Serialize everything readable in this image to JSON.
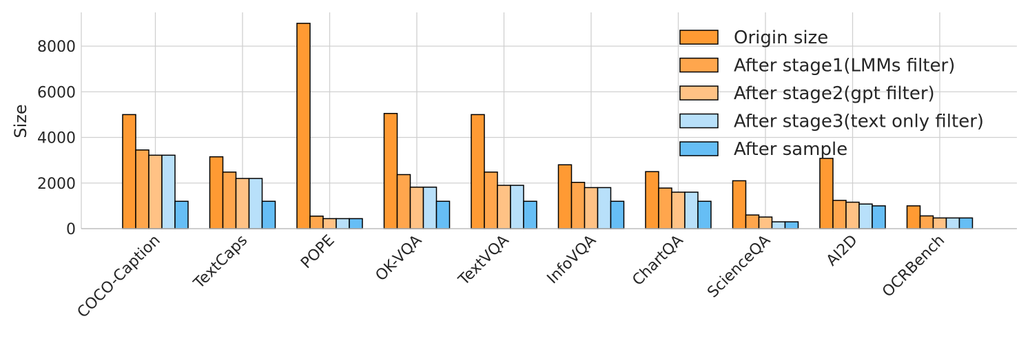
{
  "chart_data": {
    "type": "bar",
    "title": "",
    "xlabel": "",
    "ylabel": "Size",
    "ylim": [
      0,
      9500
    ],
    "yticks": [
      0,
      2000,
      4000,
      6000,
      8000
    ],
    "grid": true,
    "legend_position": "top-right",
    "categories": [
      "COCO-Caption",
      "TextCaps",
      "POPE",
      "OK-VQA",
      "TextVQA",
      "InfoVQA",
      "ChartQA",
      "ScienceQA",
      "AI2D",
      "OCRBench"
    ],
    "series": [
      {
        "name": "Origin size",
        "color": "#FF9A33",
        "values": [
          5000,
          3150,
          9000,
          5050,
          5000,
          2800,
          2500,
          2100,
          3080,
          1000
        ]
      },
      {
        "name": "After stage1(LMMs filter)",
        "color": "#FFA64D",
        "values": [
          3450,
          2480,
          550,
          2370,
          2480,
          2030,
          1780,
          600,
          1240,
          560
        ]
      },
      {
        "name": "After stage2(gpt filter)",
        "color": "#FFC285",
        "values": [
          3220,
          2200,
          440,
          1820,
          1900,
          1800,
          1600,
          510,
          1160,
          470
        ]
      },
      {
        "name": "After stage3(text only filter)",
        "color": "#B8E0FA",
        "values": [
          3220,
          2200,
          440,
          1820,
          1900,
          1800,
          1600,
          300,
          1080,
          470
        ]
      },
      {
        "name": "After sample",
        "color": "#66BEF5",
        "values": [
          1200,
          1200,
          440,
          1200,
          1200,
          1200,
          1200,
          300,
          1000,
          470
        ]
      }
    ]
  }
}
